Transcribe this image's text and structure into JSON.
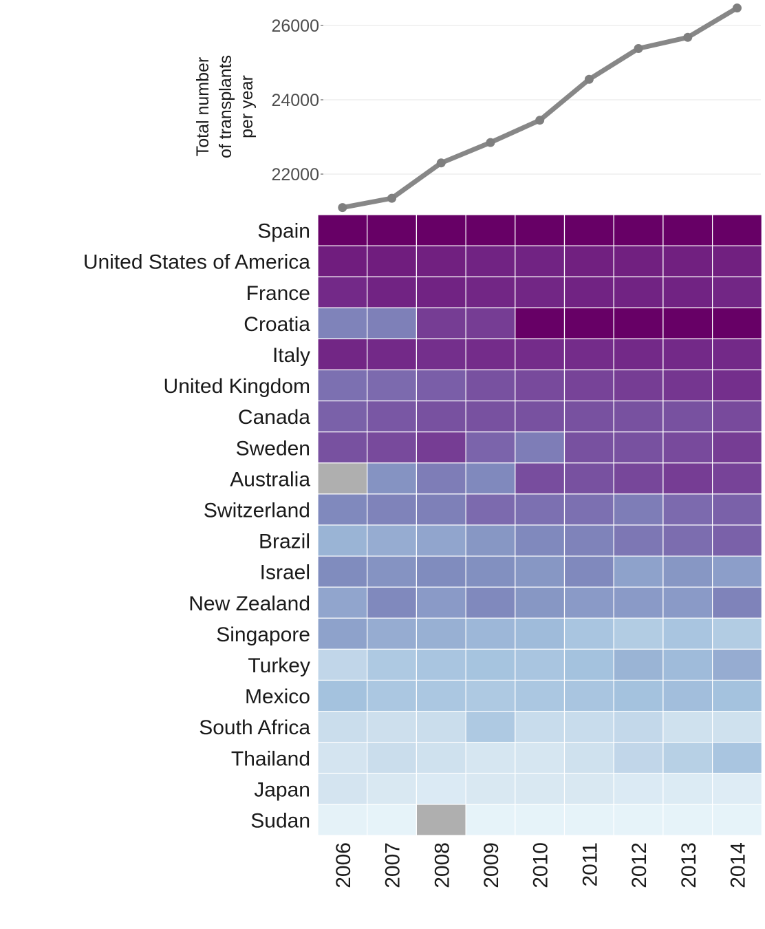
{
  "chart_data": [
    {
      "type": "line",
      "title": "",
      "ylabel": "Total number of transplants per year",
      "ylabel_lines": [
        "Total number",
        "of transplants",
        "per year"
      ],
      "xlabel": "",
      "x": [
        "2006",
        "2007",
        "2008",
        "2009",
        "2010",
        "2011",
        "2012",
        "2013",
        "2014"
      ],
      "y": [
        21100,
        21350,
        22300,
        22850,
        23450,
        24550,
        25380,
        25680,
        26470
      ],
      "yticks": [
        22000,
        24000,
        26000
      ],
      "yticklabels": [
        "22000",
        "24000",
        "26000"
      ],
      "ylim": [
        20800,
        26950
      ],
      "grid": true,
      "line_color": "#878787"
    },
    {
      "type": "heatmap",
      "title": "",
      "rows": [
        "Spain",
        "United States of America",
        "France",
        "Croatia",
        "Italy",
        "United Kingdom",
        "Canada",
        "Sweden",
        "Australia",
        "Switzerland",
        "Brazil",
        "Israel",
        "New Zealand",
        "Singapore",
        "Turkey",
        "Mexico",
        "South Africa",
        "Thailand",
        "Japan",
        "Sudan"
      ],
      "columns": [
        "2006",
        "2007",
        "2008",
        "2009",
        "2010",
        "2011",
        "2012",
        "2013",
        "2014"
      ],
      "missing_color": "#afafaf",
      "values": [
        [
          1.0,
          1.0,
          1.0,
          1.0,
          1.0,
          1.0,
          1.0,
          1.0,
          1.0
        ],
        [
          0.9,
          0.9,
          0.89,
          0.88,
          0.88,
          0.89,
          0.89,
          0.89,
          0.89
        ],
        [
          0.86,
          0.88,
          0.88,
          0.87,
          0.87,
          0.88,
          0.88,
          0.88,
          0.87
        ],
        [
          0.58,
          0.59,
          0.8,
          0.8,
          1.0,
          1.0,
          1.0,
          1.0,
          1.0
        ],
        [
          0.87,
          0.86,
          0.84,
          0.85,
          0.85,
          0.85,
          0.86,
          0.86,
          0.86
        ],
        [
          0.64,
          0.66,
          0.7,
          0.74,
          0.76,
          0.78,
          0.8,
          0.82,
          0.84
        ],
        [
          0.69,
          0.72,
          0.74,
          0.74,
          0.74,
          0.74,
          0.74,
          0.74,
          0.76
        ],
        [
          0.74,
          0.76,
          0.8,
          0.68,
          0.6,
          0.74,
          0.74,
          0.76,
          0.8
        ],
        [
          null,
          0.53,
          0.6,
          0.56,
          0.75,
          0.74,
          0.77,
          0.8,
          0.78
        ],
        [
          0.56,
          0.58,
          0.59,
          0.66,
          0.64,
          0.64,
          0.6,
          0.66,
          0.69
        ],
        [
          0.44,
          0.46,
          0.48,
          0.52,
          0.56,
          0.58,
          0.62,
          0.65,
          0.69
        ],
        [
          0.55,
          0.53,
          0.55,
          0.54,
          0.52,
          0.56,
          0.49,
          0.52,
          0.5
        ],
        [
          0.48,
          0.56,
          0.51,
          0.56,
          0.52,
          0.51,
          0.51,
          0.51,
          0.58
        ],
        [
          0.49,
          0.46,
          0.45,
          0.43,
          0.42,
          0.38,
          0.34,
          0.38,
          0.34
        ],
        [
          0.28,
          0.36,
          0.38,
          0.39,
          0.38,
          0.4,
          0.44,
          0.42,
          0.46
        ],
        [
          0.4,
          0.37,
          0.37,
          0.36,
          0.37,
          0.38,
          0.4,
          0.41,
          0.4
        ],
        [
          0.24,
          0.23,
          0.24,
          0.36,
          0.25,
          0.25,
          0.27,
          0.22,
          0.22
        ],
        [
          0.2,
          0.24,
          0.22,
          0.18,
          0.18,
          0.22,
          0.28,
          0.32,
          0.38
        ],
        [
          0.2,
          0.16,
          0.14,
          0.16,
          0.16,
          0.16,
          0.14,
          0.13,
          0.12
        ],
        [
          0.06,
          0.05,
          null,
          0.05,
          0.05,
          0.05,
          0.05,
          0.05,
          0.05
        ]
      ]
    }
  ]
}
